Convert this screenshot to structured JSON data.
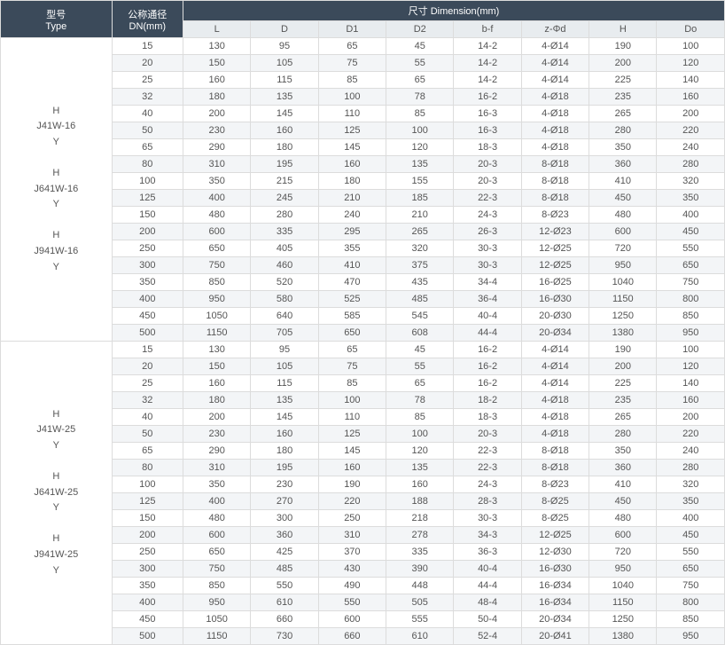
{
  "header": {
    "type_label_line1": "型号",
    "type_label_line2": "Type",
    "dn_label_line1": "公称通径",
    "dn_label_line2": "DN(mm)",
    "dim_group_label": "尺寸 Dimension(mm)",
    "cols": [
      "L",
      "D",
      "D1",
      "D2",
      "b-f",
      "z-Φd",
      "H",
      "Do"
    ]
  },
  "colors": {
    "hdr_dark_bg": "#3b4a5a",
    "hdr_light_bg": "#e8ecef",
    "border": "#dcdcdc",
    "row_alt_bg": "#f3f5f7",
    "text": "#555555",
    "hdr_text": "#ffffff"
  },
  "groups": [
    {
      "type_lines": [
        "H",
        "J41W-16",
        "Y",
        "",
        "H",
        "J641W-16",
        "Y",
        "",
        "H",
        "J941W-16",
        "Y"
      ],
      "rows": [
        {
          "dn": "15",
          "L": "130",
          "D": "95",
          "D1": "65",
          "D2": "45",
          "bf": "14-2",
          "zd": "4-Ø14",
          "H": "190",
          "Do": "100"
        },
        {
          "dn": "20",
          "L": "150",
          "D": "105",
          "D1": "75",
          "D2": "55",
          "bf": "14-2",
          "zd": "4-Ø14",
          "H": "200",
          "Do": "120"
        },
        {
          "dn": "25",
          "L": "160",
          "D": "115",
          "D1": "85",
          "D2": "65",
          "bf": "14-2",
          "zd": "4-Ø14",
          "H": "225",
          "Do": "140"
        },
        {
          "dn": "32",
          "L": "180",
          "D": "135",
          "D1": "100",
          "D2": "78",
          "bf": "16-2",
          "zd": "4-Ø18",
          "H": "235",
          "Do": "160"
        },
        {
          "dn": "40",
          "L": "200",
          "D": "145",
          "D1": "110",
          "D2": "85",
          "bf": "16-3",
          "zd": "4-Ø18",
          "H": "265",
          "Do": "200"
        },
        {
          "dn": "50",
          "L": "230",
          "D": "160",
          "D1": "125",
          "D2": "100",
          "bf": "16-3",
          "zd": "4-Ø18",
          "H": "280",
          "Do": "220"
        },
        {
          "dn": "65",
          "L": "290",
          "D": "180",
          "D1": "145",
          "D2": "120",
          "bf": "18-3",
          "zd": "4-Ø18",
          "H": "350",
          "Do": "240"
        },
        {
          "dn": "80",
          "L": "310",
          "D": "195",
          "D1": "160",
          "D2": "135",
          "bf": "20-3",
          "zd": "8-Ø18",
          "H": "360",
          "Do": "280"
        },
        {
          "dn": "100",
          "L": "350",
          "D": "215",
          "D1": "180",
          "D2": "155",
          "bf": "20-3",
          "zd": "8-Ø18",
          "H": "410",
          "Do": "320"
        },
        {
          "dn": "125",
          "L": "400",
          "D": "245",
          "D1": "210",
          "D2": "185",
          "bf": "22-3",
          "zd": "8-Ø18",
          "H": "450",
          "Do": "350"
        },
        {
          "dn": "150",
          "L": "480",
          "D": "280",
          "D1": "240",
          "D2": "210",
          "bf": "24-3",
          "zd": "8-Ø23",
          "H": "480",
          "Do": "400"
        },
        {
          "dn": "200",
          "L": "600",
          "D": "335",
          "D1": "295",
          "D2": "265",
          "bf": "26-3",
          "zd": "12-Ø23",
          "H": "600",
          "Do": "450"
        },
        {
          "dn": "250",
          "L": "650",
          "D": "405",
          "D1": "355",
          "D2": "320",
          "bf": "30-3",
          "zd": "12-Ø25",
          "H": "720",
          "Do": "550"
        },
        {
          "dn": "300",
          "L": "750",
          "D": "460",
          "D1": "410",
          "D2": "375",
          "bf": "30-3",
          "zd": "12-Ø25",
          "H": "950",
          "Do": "650"
        },
        {
          "dn": "350",
          "L": "850",
          "D": "520",
          "D1": "470",
          "D2": "435",
          "bf": "34-4",
          "zd": "16-Ø25",
          "H": "1040",
          "Do": "750"
        },
        {
          "dn": "400",
          "L": "950",
          "D": "580",
          "D1": "525",
          "D2": "485",
          "bf": "36-4",
          "zd": "16-Ø30",
          "H": "1150",
          "Do": "800"
        },
        {
          "dn": "450",
          "L": "1050",
          "D": "640",
          "D1": "585",
          "D2": "545",
          "bf": "40-4",
          "zd": "20-Ø30",
          "H": "1250",
          "Do": "850"
        },
        {
          "dn": "500",
          "L": "1150",
          "D": "705",
          "D1": "650",
          "D2": "608",
          "bf": "44-4",
          "zd": "20-Ø34",
          "H": "1380",
          "Do": "950"
        }
      ]
    },
    {
      "type_lines": [
        "H",
        "J41W-25",
        "Y",
        "",
        "H",
        "J641W-25",
        "Y",
        "",
        "H",
        "J941W-25",
        "Y"
      ],
      "rows": [
        {
          "dn": "15",
          "L": "130",
          "D": "95",
          "D1": "65",
          "D2": "45",
          "bf": "16-2",
          "zd": "4-Ø14",
          "H": "190",
          "Do": "100"
        },
        {
          "dn": "20",
          "L": "150",
          "D": "105",
          "D1": "75",
          "D2": "55",
          "bf": "16-2",
          "zd": "4-Ø14",
          "H": "200",
          "Do": "120"
        },
        {
          "dn": "25",
          "L": "160",
          "D": "115",
          "D1": "85",
          "D2": "65",
          "bf": "16-2",
          "zd": "4-Ø14",
          "H": "225",
          "Do": "140"
        },
        {
          "dn": "32",
          "L": "180",
          "D": "135",
          "D1": "100",
          "D2": "78",
          "bf": "18-2",
          "zd": "4-Ø18",
          "H": "235",
          "Do": "160"
        },
        {
          "dn": "40",
          "L": "200",
          "D": "145",
          "D1": "110",
          "D2": "85",
          "bf": "18-3",
          "zd": "4-Ø18",
          "H": "265",
          "Do": "200"
        },
        {
          "dn": "50",
          "L": "230",
          "D": "160",
          "D1": "125",
          "D2": "100",
          "bf": "20-3",
          "zd": "4-Ø18",
          "H": "280",
          "Do": "220"
        },
        {
          "dn": "65",
          "L": "290",
          "D": "180",
          "D1": "145",
          "D2": "120",
          "bf": "22-3",
          "zd": "8-Ø18",
          "H": "350",
          "Do": "240"
        },
        {
          "dn": "80",
          "L": "310",
          "D": "195",
          "D1": "160",
          "D2": "135",
          "bf": "22-3",
          "zd": "8-Ø18",
          "H": "360",
          "Do": "280"
        },
        {
          "dn": "100",
          "L": "350",
          "D": "230",
          "D1": "190",
          "D2": "160",
          "bf": "24-3",
          "zd": "8-Ø23",
          "H": "410",
          "Do": "320"
        },
        {
          "dn": "125",
          "L": "400",
          "D": "270",
          "D1": "220",
          "D2": "188",
          "bf": "28-3",
          "zd": "8-Ø25",
          "H": "450",
          "Do": "350"
        },
        {
          "dn": "150",
          "L": "480",
          "D": "300",
          "D1": "250",
          "D2": "218",
          "bf": "30-3",
          "zd": "8-Ø25",
          "H": "480",
          "Do": "400"
        },
        {
          "dn": "200",
          "L": "600",
          "D": "360",
          "D1": "310",
          "D2": "278",
          "bf": "34-3",
          "zd": "12-Ø25",
          "H": "600",
          "Do": "450"
        },
        {
          "dn": "250",
          "L": "650",
          "D": "425",
          "D1": "370",
          "D2": "335",
          "bf": "36-3",
          "zd": "12-Ø30",
          "H": "720",
          "Do": "550"
        },
        {
          "dn": "300",
          "L": "750",
          "D": "485",
          "D1": "430",
          "D2": "390",
          "bf": "40-4",
          "zd": "16-Ø30",
          "H": "950",
          "Do": "650"
        },
        {
          "dn": "350",
          "L": "850",
          "D": "550",
          "D1": "490",
          "D2": "448",
          "bf": "44-4",
          "zd": "16-Ø34",
          "H": "1040",
          "Do": "750"
        },
        {
          "dn": "400",
          "L": "950",
          "D": "610",
          "D1": "550",
          "D2": "505",
          "bf": "48-4",
          "zd": "16-Ø34",
          "H": "1150",
          "Do": "800"
        },
        {
          "dn": "450",
          "L": "1050",
          "D": "660",
          "D1": "600",
          "D2": "555",
          "bf": "50-4",
          "zd": "20-Ø34",
          "H": "1250",
          "Do": "850"
        },
        {
          "dn": "500",
          "L": "1150",
          "D": "730",
          "D1": "660",
          "D2": "610",
          "bf": "52-4",
          "zd": "20-Ø41",
          "H": "1380",
          "Do": "950"
        }
      ]
    }
  ]
}
